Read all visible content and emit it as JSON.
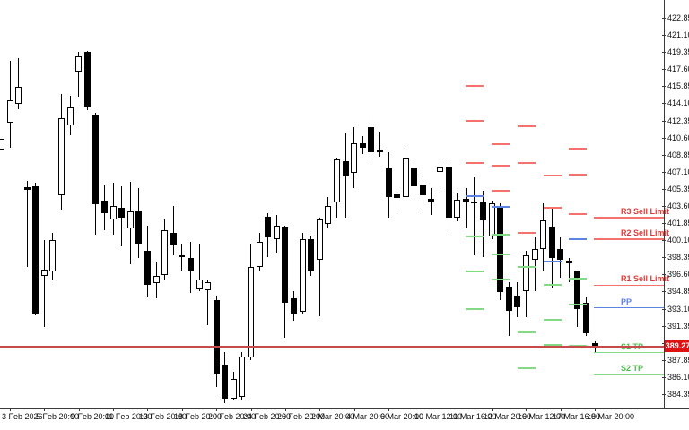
{
  "chart_data": {
    "type": "candlestick",
    "title": "",
    "current_price": "389.27",
    "y_axis": {
      "ticks": [
        422.85,
        421.1,
        419.35,
        417.6,
        415.85,
        414.1,
        412.35,
        410.6,
        408.85,
        407.1,
        405.35,
        403.6,
        401.85,
        400.1,
        398.35,
        396.6,
        394.85,
        393.1,
        391.35,
        389.6,
        387.85,
        386.1,
        384.35
      ]
    },
    "x_axis": {
      "labels": [
        {
          "index": 1,
          "text": "3 Feb 2026"
        },
        {
          "index": 5,
          "text": "5 Feb 20:00"
        },
        {
          "index": 9,
          "text": "9 Feb 20:00"
        },
        {
          "index": 13,
          "text": "11 Feb 20:00"
        },
        {
          "index": 17,
          "text": "13 Feb 20:00"
        },
        {
          "index": 21,
          "text": "18 Feb 20:00"
        },
        {
          "index": 25,
          "text": "20 Feb 20:00"
        },
        {
          "index": 29,
          "text": "24 Feb 20:00"
        },
        {
          "index": 33,
          "text": "26 Feb 20:00"
        },
        {
          "index": 37,
          "text": "2 Mar 20:00"
        },
        {
          "index": 41,
          "text": "4 Mar 20:00"
        },
        {
          "index": 45,
          "text": "6 Mar 20:00"
        },
        {
          "index": 49,
          "text": "10 Mar 12:00"
        },
        {
          "index": 53,
          "text": "11 Mar 16:00"
        },
        {
          "index": 57,
          "text": "12 Mar 20:00"
        },
        {
          "index": 61,
          "text": "16 Mar 12:00"
        },
        {
          "index": 65,
          "text": "17 Mar 16:00"
        },
        {
          "index": 69,
          "text": "18 Mar 20:00"
        }
      ]
    },
    "candles_ohlc": [
      [
        409.4,
        410.5,
        409.4,
        410.5
      ],
      [
        412.1,
        418.45,
        409.6,
        414.4
      ],
      [
        414.0,
        418.7,
        413.5,
        415.8
      ],
      [
        405.55,
        406.2,
        397.4,
        405.2
      ],
      [
        405.6,
        406.0,
        392.4,
        392.6
      ],
      [
        396.4,
        400.1,
        391.2,
        397.1
      ],
      [
        396.9,
        400.85,
        396.0,
        400.1
      ],
      [
        404.7,
        415.1,
        403.2,
        412.6
      ],
      [
        411.85,
        414.9,
        410.8,
        413.7
      ],
      [
        417.35,
        419.4,
        414.8,
        418.9
      ],
      [
        419.4,
        419.5,
        413.4,
        413.8
      ],
      [
        413.0,
        413.1,
        400.7,
        403.8
      ],
      [
        404.2,
        405.8,
        401.1,
        402.9
      ],
      [
        402.2,
        406.0,
        400.7,
        403.6
      ],
      [
        403.45,
        405.6,
        399.5,
        402.4
      ],
      [
        401.3,
        406.05,
        397.65,
        403.1
      ],
      [
        403.1,
        405.4,
        398.3,
        399.75
      ],
      [
        399.0,
        401.6,
        394.3,
        395.5
      ],
      [
        395.7,
        397.8,
        394.2,
        396.5
      ],
      [
        396.55,
        402.2,
        396.0,
        401.1
      ],
      [
        400.85,
        403.6,
        398.6,
        399.7
      ],
      [
        398.6,
        399.8,
        396.9,
        398.4
      ],
      [
        398.3,
        399.9,
        394.7,
        396.9
      ],
      [
        395.1,
        399.8,
        394.9,
        396.1
      ],
      [
        395.0,
        396.1,
        391.4,
        395.8
      ],
      [
        394.0,
        394.4,
        385.1,
        386.5
      ],
      [
        387.4,
        388.7,
        383.4,
        383.9
      ],
      [
        383.9,
        386.65,
        383.7,
        385.9
      ],
      [
        384.1,
        388.7,
        383.7,
        388.2
      ],
      [
        388.1,
        399.8,
        387.8,
        397.4
      ],
      [
        397.4,
        400.85,
        397.0,
        399.9
      ],
      [
        402.5,
        402.9,
        398.4,
        400.4
      ],
      [
        400.2,
        402.7,
        398.85,
        401.6
      ],
      [
        401.5,
        401.6,
        390.1,
        393.7
      ],
      [
        394.2,
        394.9,
        391.9,
        392.6
      ],
      [
        392.8,
        400.9,
        392.6,
        400.2
      ],
      [
        400.2,
        400.6,
        396.45,
        397.0
      ],
      [
        398.1,
        402.4,
        392.3,
        402.2
      ],
      [
        401.8,
        404.5,
        401.3,
        403.6
      ],
      [
        404.0,
        408.6,
        402.4,
        408.4
      ],
      [
        408.2,
        411.1,
        402.4,
        406.6
      ],
      [
        407.0,
        411.7,
        405.4,
        410.0
      ],
      [
        410.0,
        410.75,
        408.9,
        409.6
      ],
      [
        411.7,
        413.0,
        408.5,
        409.1
      ],
      [
        409.4,
        411.2,
        408.6,
        409.05
      ],
      [
        407.45,
        409.1,
        402.4,
        404.5
      ],
      [
        404.8,
        405.2,
        402.9,
        404.4
      ],
      [
        404.5,
        409.6,
        404.2,
        408.6
      ],
      [
        407.45,
        408.2,
        404.2,
        405.6
      ],
      [
        405.7,
        406.6,
        403.3,
        404.7
      ],
      [
        404.3,
        405.4,
        402.7,
        404.0
      ],
      [
        407.1,
        408.5,
        405.4,
        407.6
      ],
      [
        407.6,
        408.2,
        401.1,
        402.4
      ],
      [
        402.4,
        405.0,
        402.05,
        404.25
      ],
      [
        404.3,
        405.4,
        401.3,
        404.1
      ],
      [
        404.1,
        406.5,
        398.6,
        403.9
      ],
      [
        404.0,
        405.2,
        398.4,
        402.1
      ],
      [
        400.5,
        404.2,
        400.2,
        403.9
      ],
      [
        403.6,
        403.9,
        394.0,
        394.8
      ],
      [
        395.35,
        395.8,
        390.3,
        392.9
      ],
      [
        394.4,
        395.8,
        392.2,
        393.2
      ],
      [
        394.9,
        399.0,
        392.2,
        398.6
      ],
      [
        398.1,
        400.4,
        394.9,
        399.2
      ],
      [
        399.2,
        403.9,
        396.9,
        402.1
      ],
      [
        401.5,
        403.4,
        395.2,
        398.3
      ],
      [
        399.2,
        400.4,
        396.3,
        398.1
      ],
      [
        398.0,
        398.3,
        395.8,
        397.7
      ],
      [
        396.9,
        397.0,
        391.2,
        393.1
      ],
      [
        393.7,
        394.3,
        390.3,
        390.6
      ],
      [
        389.55,
        389.8,
        388.6,
        389.2
      ]
    ],
    "pivot_columns": [
      {
        "resistances": [
          415.9,
          412.3,
          408.0
        ],
        "pivot": 404.65,
        "supports": [
          400.45,
          396.9,
          393.1
        ]
      },
      {
        "resistances": [
          409.9,
          407.7,
          405.2
        ],
        "pivot": 403.5,
        "supports": [
          400.65,
          398.7,
          396.1
        ]
      },
      {
        "resistances": [
          411.8,
          408.0,
          400.9
        ],
        "pivot": null,
        "supports": [
          397.4,
          390.7,
          387.0
        ]
      },
      {
        "resistances": [
          406.75,
          403.4
        ],
        "pivot": 397.9,
        "supports": [
          395.5,
          392.0,
          389.4
        ]
      },
      {
        "resistances": [
          409.5,
          406.8,
          402.8
        ],
        "pivot": 400.2,
        "supports": [
          396.2,
          393.5,
          389.3
        ]
      }
    ],
    "trade_lines": [
      {
        "label": "R3 Sell Limit",
        "price": 402.4,
        "kind": "resistance"
      },
      {
        "label": "R2 Sell Limit",
        "price": 400.2,
        "kind": "resistance"
      },
      {
        "label": "R1 Sell Limit",
        "price": 395.5,
        "kind": "resistance"
      },
      {
        "label": "PP",
        "price": 393.2,
        "kind": "pivot"
      },
      {
        "label": "S1 TP",
        "price": 388.6,
        "kind": "support"
      },
      {
        "label": "S2 TP",
        "price": 386.35,
        "kind": "support"
      }
    ]
  },
  "colors": {
    "bull_candle": "#ffffff",
    "bear_candle": "#000000",
    "resistance": "#f4716d",
    "resistance_text": "#e03a36",
    "pivot": "#5c83e0",
    "support": "#84da84",
    "support_text": "#4bbf4b",
    "price_line": "#c64a4a",
    "badge_bg": "#df1212",
    "badge_text": "#ffffff"
  }
}
